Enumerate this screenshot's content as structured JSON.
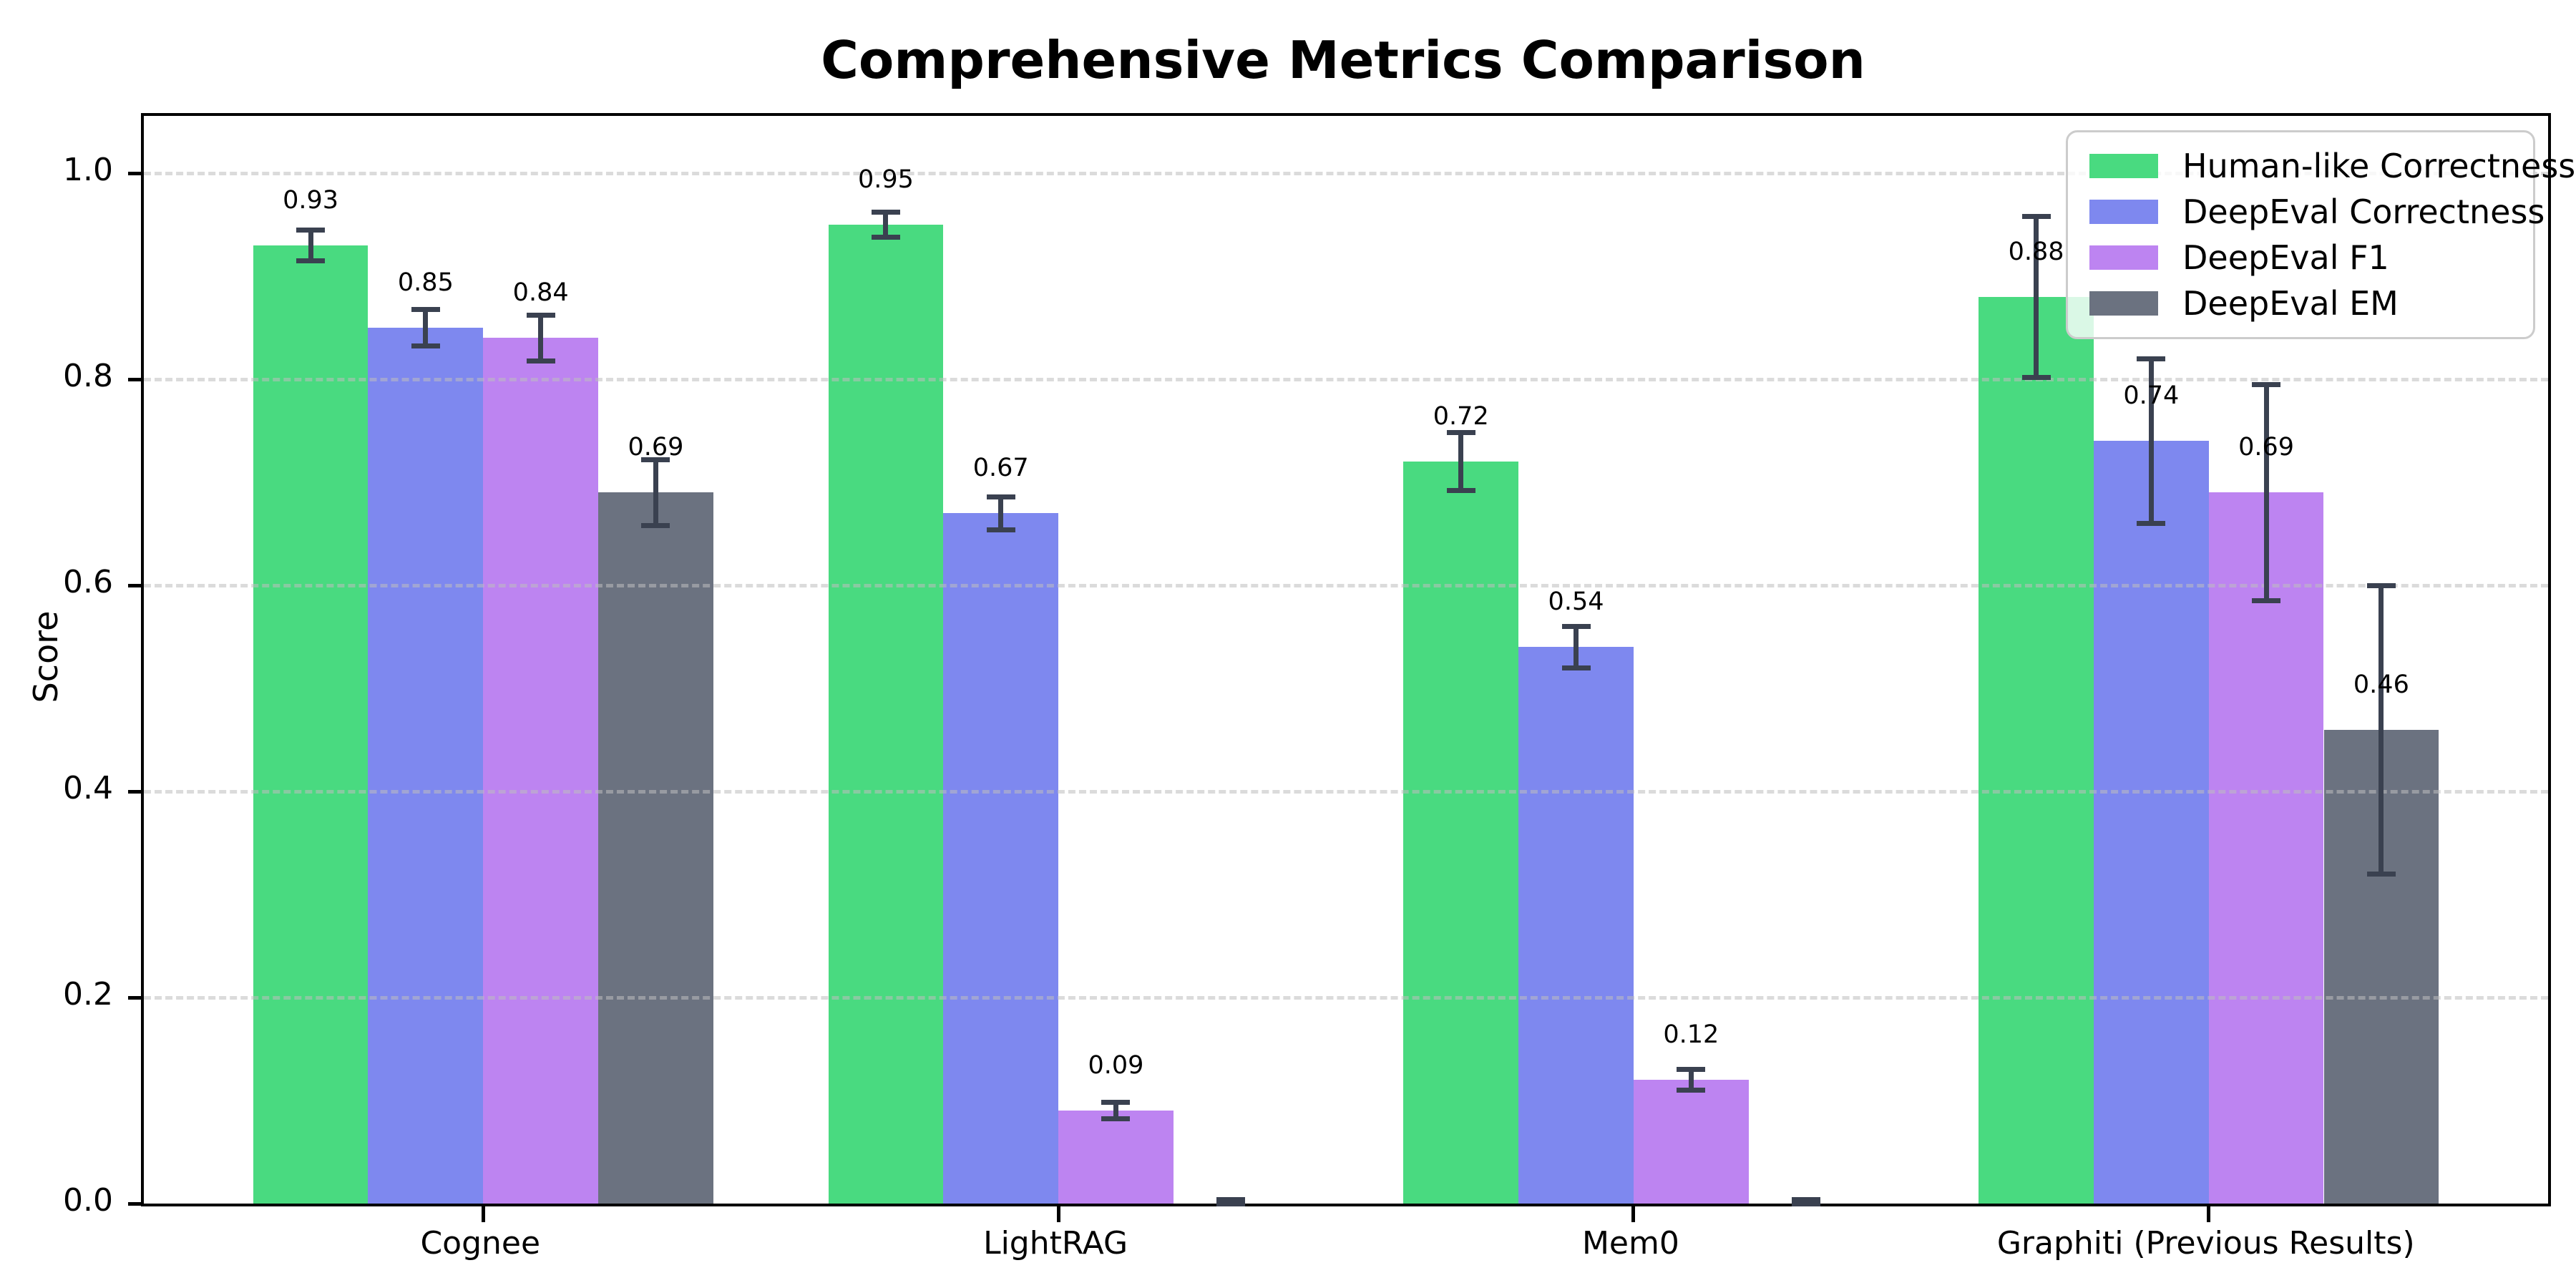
{
  "title": "Comprehensive Metrics Comparison",
  "chart_data": {
    "type": "bar",
    "title": "Comprehensive Metrics Comparison",
    "categories": [
      "Cognee",
      "LightRAG",
      "Mem0",
      "Graphiti (Previous Results)"
    ],
    "series": [
      {
        "name": "Human-like Correctness",
        "color": "#49da80",
        "values": [
          0.93,
          0.95,
          0.72,
          0.88
        ],
        "errors": [
          0.015,
          0.012,
          0.028,
          0.078
        ],
        "labels": [
          "0.93",
          "0.95",
          "0.72",
          "0.88"
        ]
      },
      {
        "name": "DeepEval Correctness",
        "color": "#7e88ef",
        "values": [
          0.85,
          0.67,
          0.54,
          0.74
        ],
        "errors": [
          0.018,
          0.016,
          0.02,
          0.08
        ],
        "labels": [
          "0.85",
          "0.67",
          "0.54",
          "0.74"
        ]
      },
      {
        "name": "DeepEval F1",
        "color": "#bd84f1",
        "values": [
          0.84,
          0.09,
          0.12,
          0.69
        ],
        "errors": [
          0.022,
          0.008,
          0.01,
          0.105
        ],
        "labels": [
          "0.84",
          "0.09",
          "0.12",
          "0.69"
        ]
      },
      {
        "name": "DeepEval EM",
        "color": "#6b7280",
        "values": [
          0.69,
          0.0,
          0.0,
          0.46
        ],
        "errors": [
          0.032,
          0.004,
          0.004,
          0.14
        ],
        "labels": [
          "0.69",
          "",
          "",
          "0.46"
        ]
      }
    ],
    "xlabel": "",
    "ylabel": "Score",
    "yticks": [
      0.0,
      0.2,
      0.4,
      0.6,
      0.8,
      1.0
    ],
    "ylim": [
      0,
      1.0556
    ],
    "grid": "dashed-horizontal",
    "grid_color": "#bebebe",
    "error_bar_color": "#3a4150",
    "legend_position": "upper-right",
    "legend_entries": [
      "Human-like Correctness",
      "DeepEval Correctness",
      "DeepEval F1",
      "DeepEval EM"
    ]
  }
}
